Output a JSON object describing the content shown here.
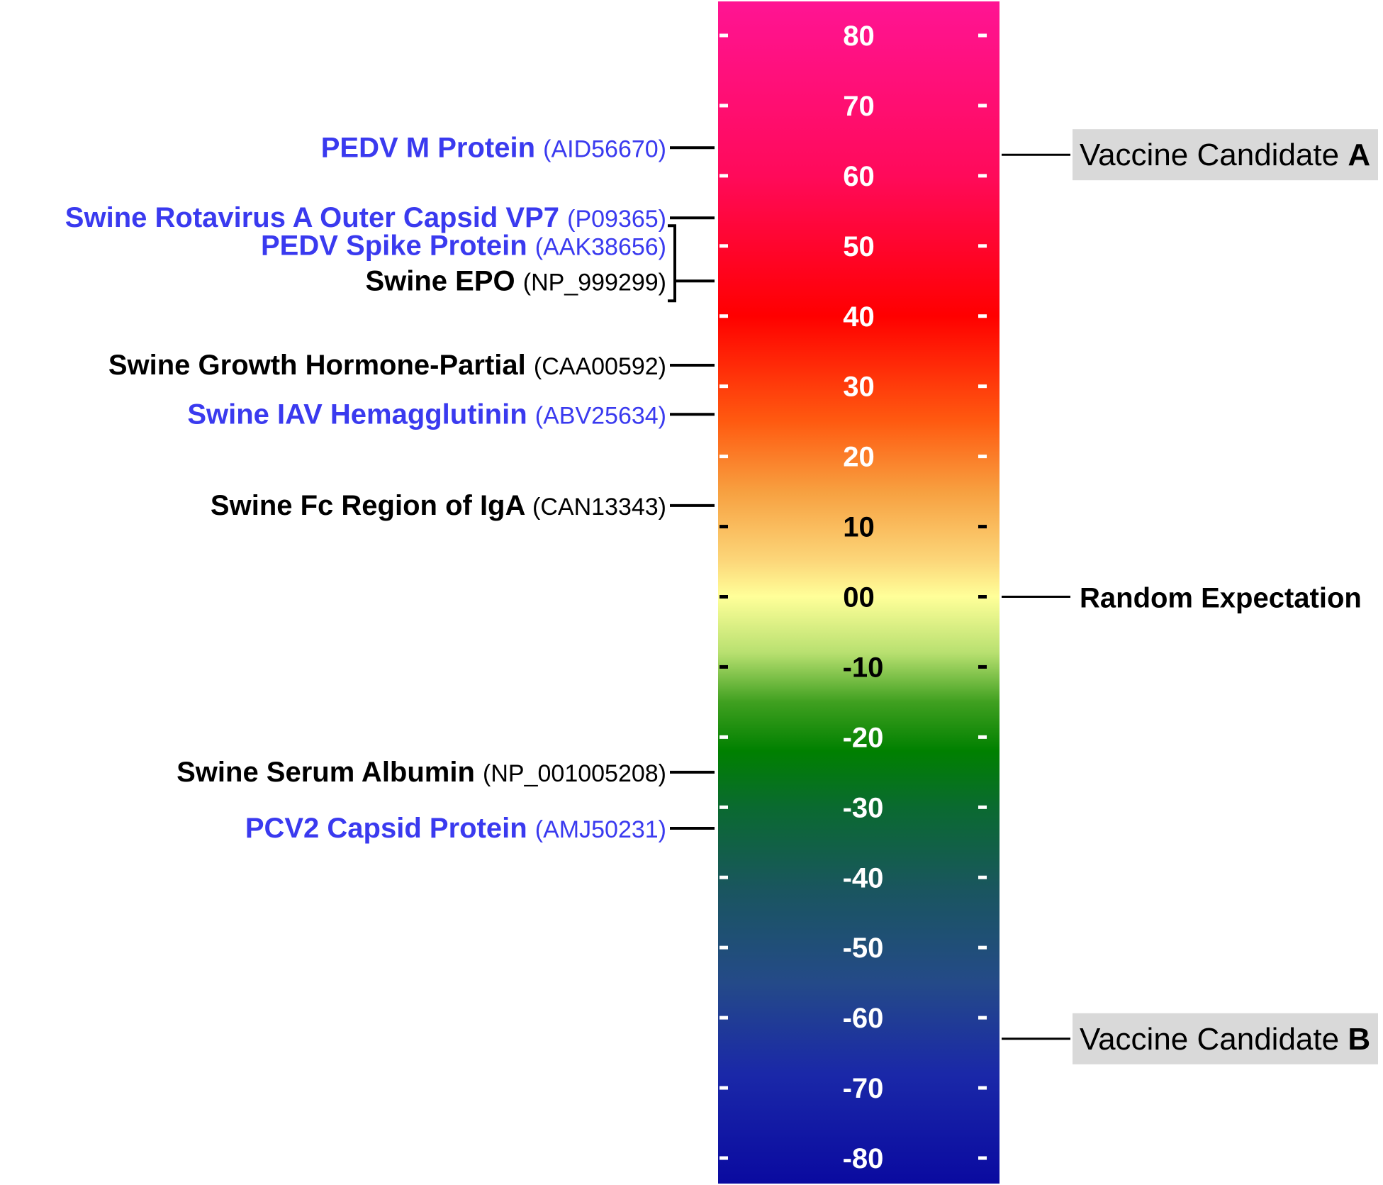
{
  "chart_data": {
    "type": "color-scale",
    "title": "",
    "ylim": [
      -85,
      85
    ],
    "ticks": [
      80,
      70,
      60,
      50,
      40,
      30,
      20,
      10,
      0,
      -10,
      -20,
      -30,
      -40,
      -50,
      -60,
      -70,
      -80
    ],
    "tick_labels": [
      "80",
      "70",
      "60",
      "50",
      "40",
      "30",
      "20",
      "10",
      "00",
      "-10",
      "-20",
      "-30",
      "-40",
      "-50",
      "-60",
      "-70",
      "-80"
    ],
    "gradient": [
      {
        "value": 85,
        "color": "#ff1493"
      },
      {
        "value": 60,
        "color": "#ff0a5a"
      },
      {
        "value": 40,
        "color": "#ff0000"
      },
      {
        "value": 25,
        "color": "#ff5a10"
      },
      {
        "value": 15,
        "color": "#f7a040"
      },
      {
        "value": 5,
        "color": "#fcd77a"
      },
      {
        "value": 0,
        "color": "#ffff99"
      },
      {
        "value": -8,
        "color": "#b8e070"
      },
      {
        "value": -15,
        "color": "#40a020"
      },
      {
        "value": -22,
        "color": "#008000"
      },
      {
        "value": -30,
        "color": "#0a6a30"
      },
      {
        "value": -42,
        "color": "#1a5560"
      },
      {
        "value": -55,
        "color": "#244a88"
      },
      {
        "value": -68,
        "color": "#1a28a8"
      },
      {
        "value": -85,
        "color": "#0a0aa0"
      }
    ],
    "left_markers": [
      {
        "name": "PEDV M Protein",
        "accession": "(AID56670)",
        "value": 64,
        "color": "#3a3aef"
      },
      {
        "name": "Swine Rotavirus A Outer Capsid VP7",
        "accession": "(P09365)",
        "value": 54,
        "color": "#3a3aef"
      },
      {
        "name": "PEDV Spike Protein",
        "accession": "(AAK38656)",
        "value": 45,
        "color": "#3a3aef",
        "bracket": true
      },
      {
        "name": "Swine EPO",
        "accession": "(NP_999299)",
        "value": 45,
        "color": "#000000",
        "bracket": true
      },
      {
        "name": "Swine Growth Hormone-Partial",
        "accession": "(CAA00592)",
        "value": 33,
        "color": "#000000"
      },
      {
        "name": "Swine IAV Hemagglutinin",
        "accession": "(ABV25634)",
        "value": 26,
        "color": "#3a3aef"
      },
      {
        "name": "Swine Fc Region of IgA",
        "accession": "(CAN13343)",
        "value": 13,
        "color": "#000000"
      },
      {
        "name": "Swine Serum Albumin",
        "accession": "(NP_001005208)",
        "value": -25,
        "color": "#000000"
      },
      {
        "name": "PCV2 Capsid Protein",
        "accession": "(AMJ50231)",
        "value": -33,
        "color": "#3a3aef"
      }
    ],
    "right_markers": [
      {
        "prefix": "Vaccine Candidate ",
        "bold_suffix": "A",
        "value": 63,
        "boxed": true
      },
      {
        "prefix": "",
        "bold_suffix": "Random Expectation",
        "value": 0,
        "boxed": false
      },
      {
        "prefix": "Vaccine Candidate ",
        "bold_suffix": "B",
        "value": -63,
        "boxed": true
      }
    ]
  },
  "colors": {
    "tick_text_light": "#ffffff",
    "tick_text_dark": "#000000",
    "annotation_box": "#d9d9d9",
    "line": "#000000"
  }
}
